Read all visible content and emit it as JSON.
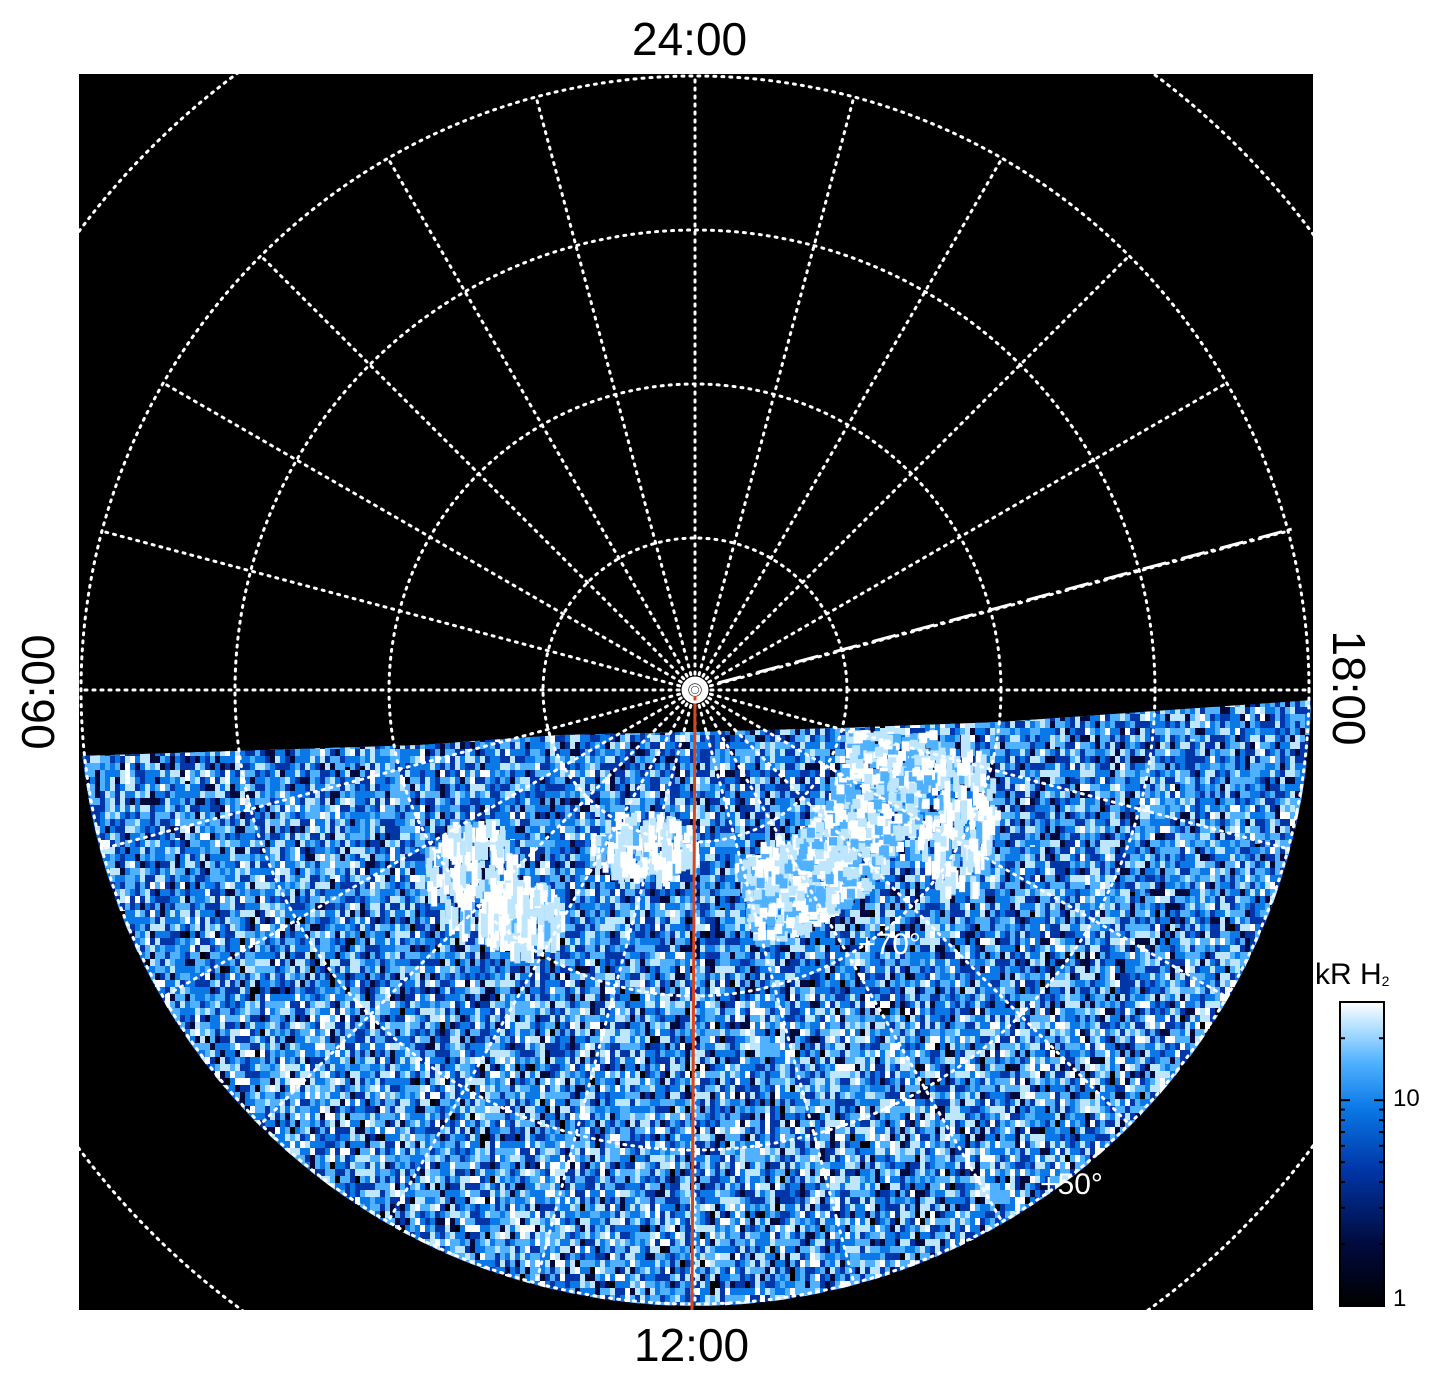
{
  "chart_data": {
    "type": "heatmap",
    "projection": "polar",
    "hour_labels": {
      "top": "24:00",
      "bottom": "12:00",
      "left": "06:00",
      "right": "18:00"
    },
    "latitude_labels": [
      "+70°",
      "+50°"
    ],
    "latitude_circles_deg": [
      80,
      70,
      60,
      50,
      40
    ],
    "meridian_step_hours": 1,
    "grid": "dotted white",
    "colorbar": {
      "title": "kR H",
      "title_subscript": "2",
      "scale": "log",
      "range": [
        1,
        30
      ],
      "tick_labels": [
        "10",
        "1"
      ],
      "colormap": [
        "#000000",
        "#000a3c",
        "#0036a8",
        "#0a78e6",
        "#4fb1ff",
        "#bfe6ff",
        "#ffffff"
      ]
    },
    "overlays": {
      "noon_meridian_color": "#d9461e",
      "dashed_line": "white, toward dusk sector"
    }
  }
}
